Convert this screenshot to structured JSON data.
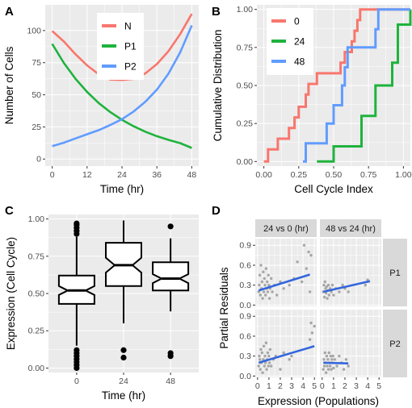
{
  "panel_letters": [
    "A",
    "B",
    "C",
    "D"
  ],
  "colors": {
    "panel_bg": "#ebebeb",
    "grid": "#ffffff",
    "red": "#f8766d",
    "green": "#1fb33d",
    "blue": "#619cff",
    "points": "#a6a6a6",
    "fit": "#3366dd"
  },
  "chart_data": [
    {
      "id": "A",
      "type": "line",
      "xlabel": "Time (hr)",
      "ylabel": "Number of Cells",
      "xlim": [
        0,
        48
      ],
      "ylim": [
        0,
        115
      ],
      "xticks": [
        0,
        12,
        24,
        36,
        48
      ],
      "yticks": [
        0,
        25,
        50,
        75,
        100
      ],
      "grid": true,
      "legend_position": "top-center",
      "x": [
        0,
        4,
        8,
        12,
        16,
        20,
        24,
        28,
        32,
        36,
        40,
        44,
        48
      ],
      "series": [
        {
          "name": "N",
          "color": "#f8766d",
          "values": [
            99.6,
            91.5,
            81.6,
            72.9,
            66.0,
            61.8,
            61.5,
            62.4,
            66.6,
            73.9,
            84.0,
            97.2,
            113.0
          ]
        },
        {
          "name": "P1",
          "color": "#1fb33d",
          "values": [
            89.6,
            74.8,
            62.5,
            52.2,
            43.6,
            36.5,
            30.5,
            25.5,
            21.3,
            17.8,
            14.9,
            12.4,
            8.6
          ]
        },
        {
          "name": "P2",
          "color": "#619cff",
          "values": [
            10.0,
            12.7,
            16.0,
            19.3,
            22.5,
            26.5,
            31.0,
            37.0,
            44.5,
            54.0,
            66.5,
            83.0,
            104.0
          ]
        }
      ]
    },
    {
      "id": "B",
      "type": "line",
      "xlabel": "Cell Cycle Index",
      "ylabel": "Cumulative Distribution",
      "xlim": [
        -0.05,
        1.05
      ],
      "ylim": [
        -0.03,
        1.03
      ],
      "xticks": [
        0.0,
        0.25,
        0.5,
        0.75,
        1.0
      ],
      "xtick_labels": [
        "0.00",
        "0.25",
        "0.50",
        "0.75",
        "1.00"
      ],
      "yticks": [
        0.0,
        0.25,
        0.5,
        0.75,
        1.0
      ],
      "ytick_labels": [
        "0.00",
        "0.25",
        "0.50",
        "0.75",
        "1.00"
      ],
      "grid": true,
      "legend_position": "top-left",
      "series": [
        {
          "name": "0",
          "color": "#f8766d",
          "x": [
            0.0,
            0.03,
            0.1,
            0.18,
            0.22,
            0.25,
            0.3,
            0.32,
            0.38,
            0.45,
            0.55,
            0.58,
            0.63,
            0.65,
            0.67,
            0.69,
            1.05
          ],
          "values": [
            0.0,
            0.08,
            0.15,
            0.22,
            0.29,
            0.36,
            0.44,
            0.51,
            0.58,
            0.58,
            0.65,
            0.72,
            0.79,
            0.86,
            0.93,
            1.0,
            1.0
          ]
        },
        {
          "name": "24",
          "color": "#1fb33d",
          "x": [
            0.38,
            0.5,
            0.7,
            0.8,
            0.92,
            0.96,
            1.05
          ],
          "values": [
            0.0,
            0.1,
            0.3,
            0.5,
            0.65,
            0.9,
            1.0
          ]
        },
        {
          "name": "48",
          "color": "#619cff",
          "x": [
            0.28,
            0.3,
            0.45,
            0.5,
            0.56,
            0.58,
            0.6,
            0.78,
            0.8,
            0.82,
            1.05
          ],
          "values": [
            0.0,
            0.12,
            0.25,
            0.37,
            0.5,
            0.62,
            0.75,
            0.75,
            0.87,
            1.0,
            1.0
          ]
        }
      ]
    },
    {
      "id": "C",
      "type": "box",
      "xlabel": "Time (hr)",
      "ylabel": "Expression (Cell Cycle)",
      "ylim": [
        -0.03,
        1.03
      ],
      "yticks": [
        0.0,
        0.25,
        0.5,
        0.75,
        1.0
      ],
      "ytick_labels": [
        "0.00",
        "0.25",
        "0.50",
        "0.75",
        "1.00"
      ],
      "categories": [
        "0",
        "24",
        "48"
      ],
      "boxes": [
        {
          "category": "0",
          "min": 0.15,
          "q1": 0.43,
          "median": 0.52,
          "q3": 0.62,
          "max": 0.88,
          "notch": [
            0.49,
            0.55
          ],
          "outliers": [
            0.0,
            0.02,
            0.04,
            0.06,
            0.08,
            0.1,
            0.12,
            0.9,
            0.92,
            0.94,
            0.96,
            0.97
          ]
        },
        {
          "category": "24",
          "min": 0.3,
          "q1": 0.55,
          "median": 0.69,
          "q3": 0.84,
          "max": 0.99,
          "notch": [
            0.64,
            0.74
          ],
          "outliers": [
            0.07,
            0.12
          ]
        },
        {
          "category": "48",
          "min": 0.38,
          "q1": 0.52,
          "median": 0.6,
          "q3": 0.71,
          "max": 0.87,
          "notch": [
            0.57,
            0.63
          ],
          "outliers": [
            0.08,
            0.1,
            0.95
          ]
        }
      ]
    },
    {
      "id": "D",
      "type": "scatter",
      "xlabel": "Expression (Populations)",
      "ylabel": "Partial Residuals",
      "xlim": [
        -0.2,
        5.2
      ],
      "ylim": [
        -0.02,
        1.0
      ],
      "xticks": [
        0,
        1,
        2,
        3,
        4,
        5
      ],
      "yticks": [
        0.0,
        0.3,
        0.6,
        0.9
      ],
      "ytick_labels": [
        "0.0",
        "0.3",
        "0.6",
        "0.9"
      ],
      "col_labels": [
        "24 vs 0 (hr)",
        "48 vs 24 (hr)"
      ],
      "row_labels": [
        "P1",
        "P2"
      ],
      "facets": [
        {
          "row": "P1",
          "col": "24 vs 0 (hr)",
          "fit": [
            [
              0.1,
              0.22
            ],
            [
              4.6,
              0.46
            ]
          ],
          "points": [
            [
              0.1,
              0.2
            ],
            [
              0.15,
              0.3
            ],
            [
              0.2,
              0.45
            ],
            [
              0.25,
              0.15
            ],
            [
              0.3,
              0.6
            ],
            [
              0.35,
              0.25
            ],
            [
              0.4,
              0.35
            ],
            [
              0.45,
              0.1
            ],
            [
              0.5,
              0.5
            ],
            [
              0.55,
              0.2
            ],
            [
              0.6,
              0.4
            ],
            [
              0.65,
              0.3
            ],
            [
              0.7,
              0.15
            ],
            [
              0.75,
              0.55
            ],
            [
              0.8,
              0.25
            ],
            [
              0.85,
              0.35
            ],
            [
              0.9,
              0.2
            ],
            [
              0.95,
              0.45
            ],
            [
              1.0,
              0.3
            ],
            [
              1.05,
              0.1
            ],
            [
              1.1,
              0.25
            ],
            [
              1.2,
              0.4
            ],
            [
              1.3,
              0.2
            ],
            [
              1.5,
              0.3
            ],
            [
              1.7,
              0.15
            ],
            [
              2.0,
              0.35
            ],
            [
              2.3,
              0.25
            ],
            [
              2.8,
              0.3
            ],
            [
              3.2,
              0.4
            ],
            [
              3.5,
              0.65
            ],
            [
              3.9,
              0.35
            ],
            [
              4.1,
              0.9
            ],
            [
              4.3,
              0.55
            ],
            [
              4.5,
              0.8
            ],
            [
              4.6,
              0.2
            ],
            [
              4.7,
              0.75
            ]
          ]
        },
        {
          "row": "P1",
          "col": "48 vs 24 (hr)",
          "fit": [
            [
              0.1,
              0.2
            ],
            [
              4.2,
              0.36
            ]
          ],
          "points": [
            [
              0.1,
              0.2
            ],
            [
              0.15,
              0.3
            ],
            [
              0.2,
              0.12
            ],
            [
              0.25,
              0.35
            ],
            [
              0.3,
              0.25
            ],
            [
              0.35,
              0.18
            ],
            [
              0.4,
              0.28
            ],
            [
              0.45,
              0.1
            ],
            [
              0.5,
              0.22
            ],
            [
              0.55,
              0.3
            ],
            [
              0.6,
              0.15
            ],
            [
              0.7,
              0.25
            ],
            [
              0.8,
              0.2
            ],
            [
              0.9,
              0.3
            ],
            [
              1.0,
              0.15
            ],
            [
              1.2,
              0.25
            ],
            [
              1.5,
              0.2
            ],
            [
              1.8,
              0.3
            ],
            [
              2.0,
              0.25
            ],
            [
              2.3,
              0.2
            ],
            [
              3.8,
              0.3
            ],
            [
              4.0,
              0.38
            ]
          ]
        },
        {
          "row": "P2",
          "col": "24 vs 0 (hr)",
          "fit": [
            [
              0.1,
              0.2
            ],
            [
              5.0,
              0.45
            ]
          ],
          "points": [
            [
              0.1,
              0.15
            ],
            [
              0.15,
              0.3
            ],
            [
              0.2,
              0.25
            ],
            [
              0.25,
              0.1
            ],
            [
              0.3,
              0.4
            ],
            [
              0.35,
              0.2
            ],
            [
              0.4,
              0.35
            ],
            [
              0.45,
              0.05
            ],
            [
              0.5,
              0.25
            ],
            [
              0.55,
              0.45
            ],
            [
              0.6,
              0.15
            ],
            [
              0.65,
              0.3
            ],
            [
              0.7,
              0.2
            ],
            [
              0.75,
              0.5
            ],
            [
              0.8,
              0.1
            ],
            [
              0.85,
              0.25
            ],
            [
              0.9,
              0.35
            ],
            [
              0.95,
              0.15
            ],
            [
              1.0,
              0.3
            ],
            [
              1.05,
              0.2
            ],
            [
              1.1,
              0.4
            ],
            [
              1.2,
              0.15
            ],
            [
              1.4,
              0.25
            ],
            [
              1.6,
              0.3
            ],
            [
              2.0,
              0.1
            ],
            [
              2.3,
              0.35
            ],
            [
              2.8,
              0.25
            ],
            [
              3.0,
              0.3
            ],
            [
              4.6,
              0.55
            ],
            [
              4.7,
              0.8
            ],
            [
              4.8,
              0.65
            ],
            [
              5.0,
              0.75
            ]
          ]
        },
        {
          "row": "P2",
          "col": "48 vs 24 (hr)",
          "fit": [
            [
              0.1,
              0.2
            ],
            [
              2.3,
              0.19
            ]
          ],
          "points": [
            [
              0.1,
              0.1
            ],
            [
              0.15,
              0.25
            ],
            [
              0.2,
              0.15
            ],
            [
              0.25,
              0.35
            ],
            [
              0.3,
              0.2
            ],
            [
              0.35,
              0.05
            ],
            [
              0.4,
              0.3
            ],
            [
              0.45,
              0.15
            ],
            [
              0.5,
              0.25
            ],
            [
              0.55,
              0.1
            ],
            [
              0.6,
              0.35
            ],
            [
              0.65,
              0.2
            ],
            [
              0.7,
              0.15
            ],
            [
              0.75,
              0.3
            ],
            [
              0.8,
              0.1
            ],
            [
              0.85,
              0.25
            ],
            [
              0.9,
              0.2
            ],
            [
              0.95,
              0.3
            ],
            [
              1.0,
              0.12
            ],
            [
              1.1,
              0.25
            ],
            [
              1.3,
              0.15
            ],
            [
              1.5,
              0.3
            ],
            [
              1.7,
              0.2
            ],
            [
              1.9,
              0.1
            ],
            [
              2.1,
              0.25
            ],
            [
              2.3,
              0.15
            ]
          ]
        }
      ]
    }
  ]
}
